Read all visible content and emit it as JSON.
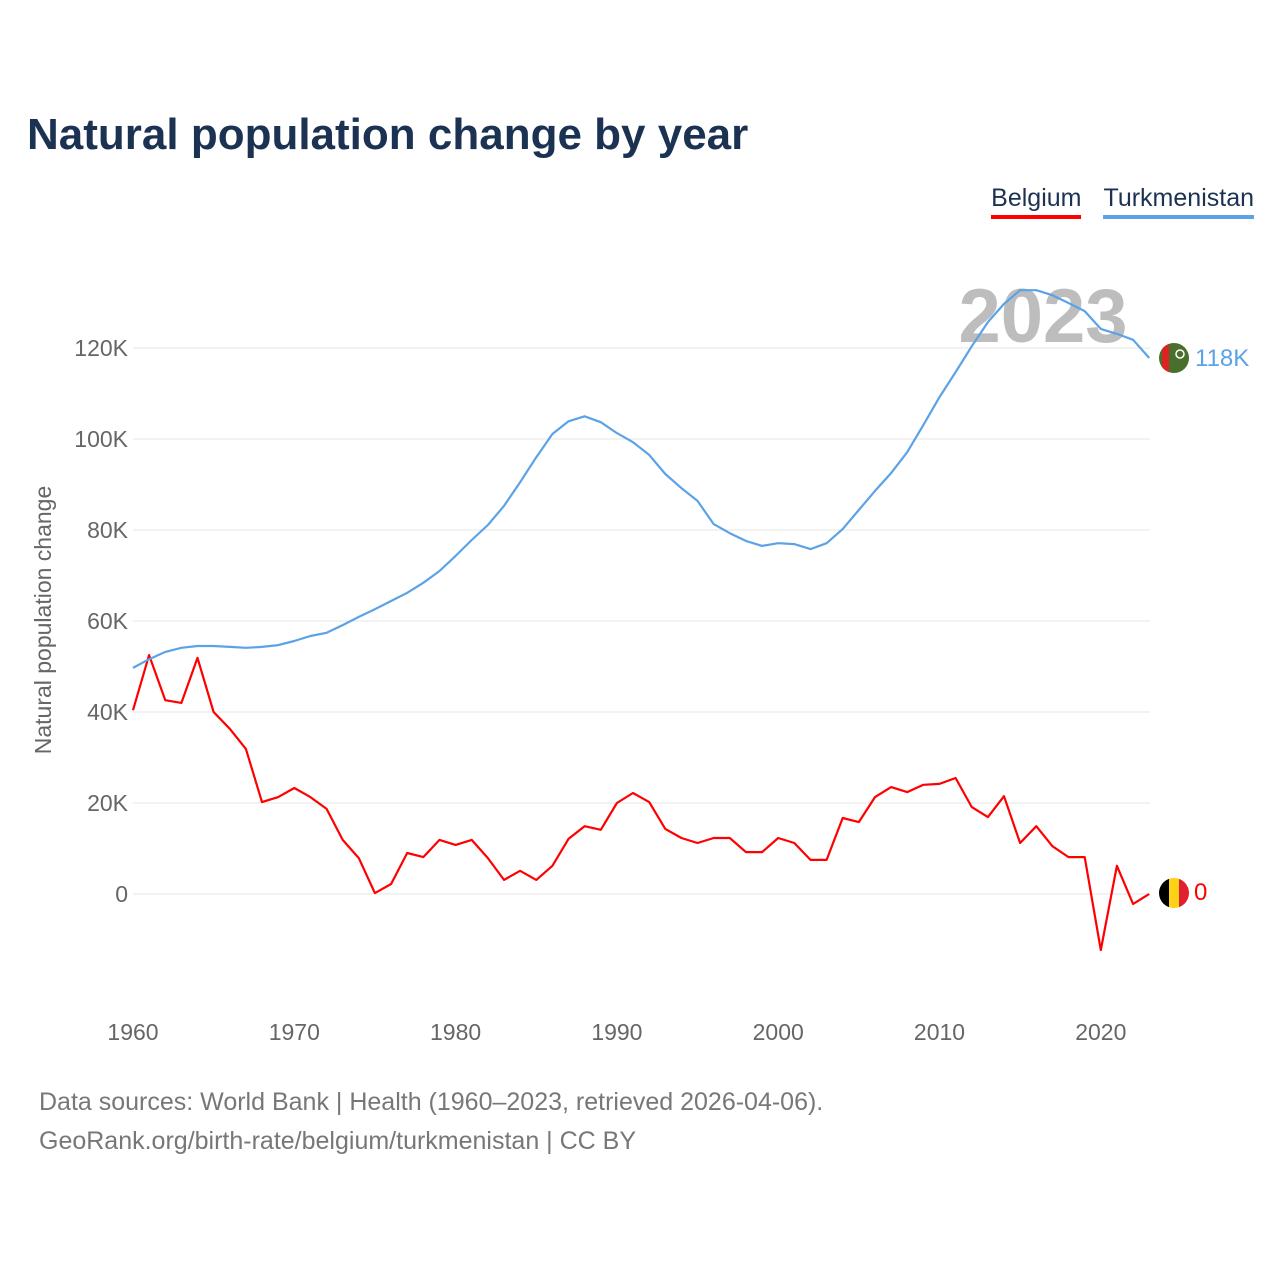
{
  "title": "Natural population change by year",
  "footer": {
    "line1": "Data sources: World Bank | Health (1960–2023, retrieved 2026-04-06).",
    "line2": "GeoRank.org/birth-rate/belgium/turkmenistan | CC BY"
  },
  "chart_data": {
    "type": "line",
    "title": "Natural population change by year",
    "xlabel": "",
    "ylabel": "Natural population change",
    "year_watermark": "2023",
    "xlim": [
      1960,
      2023
    ],
    "ylim": [
      -20000,
      135000
    ],
    "x_ticks": [
      "1960",
      "1970",
      "1980",
      "1990",
      "2000",
      "2010",
      "2020"
    ],
    "y_ticks": [
      {
        "v": 0,
        "label": "0"
      },
      {
        "v": 20000,
        "label": "20K"
      },
      {
        "v": 40000,
        "label": "40K"
      },
      {
        "v": 60000,
        "label": "60K"
      },
      {
        "v": 80000,
        "label": "80K"
      },
      {
        "v": 100000,
        "label": "100K"
      },
      {
        "v": 120000,
        "label": "120K"
      }
    ],
    "legend": "top-right",
    "x_start": 1960,
    "series": [
      {
        "name": "Belgium",
        "color": "#ff0000",
        "end_label": "0",
        "flag": "belgium-flag",
        "values": [
          40400,
          52500,
          42600,
          42000,
          51900,
          40000,
          36300,
          31900,
          20200,
          21300,
          23300,
          21300,
          18700,
          11900,
          7900,
          200,
          2200,
          9000,
          8100,
          11900,
          10800,
          11900,
          7900,
          3100,
          5100,
          3100,
          6200,
          12100,
          14900,
          14100,
          20000,
          22200,
          20200,
          14300,
          12300,
          11200,
          12300,
          12300,
          9200,
          9200,
          12300,
          11200,
          7500,
          7500,
          16700,
          15800,
          21300,
          23500,
          22400,
          24000,
          24200,
          25500,
          19100,
          16900,
          21500,
          11200,
          14900,
          10500,
          8100,
          8100,
          -12300,
          6200,
          -2200,
          0
        ]
      },
      {
        "name": "Turkmenistan",
        "color": "#5ba3e6",
        "end_label": "118K",
        "flag": "turkmenistan-flag",
        "values": [
          49700,
          51600,
          53200,
          54100,
          54500,
          54500,
          54300,
          54100,
          54300,
          54700,
          55600,
          56700,
          57400,
          59100,
          60900,
          62600,
          64400,
          66200,
          68400,
          71000,
          74300,
          77800,
          81100,
          85300,
          90500,
          96000,
          101100,
          103900,
          105000,
          103700,
          101300,
          99300,
          96500,
          92300,
          89200,
          86400,
          81300,
          79300,
          77600,
          76500,
          77100,
          76900,
          75800,
          77100,
          80200,
          84400,
          88600,
          92500,
          97100,
          103100,
          109200,
          114700,
          120400,
          125700,
          129700,
          132700,
          132700,
          131600,
          129900,
          128100,
          124200,
          123100,
          121800,
          117800
        ]
      }
    ]
  }
}
